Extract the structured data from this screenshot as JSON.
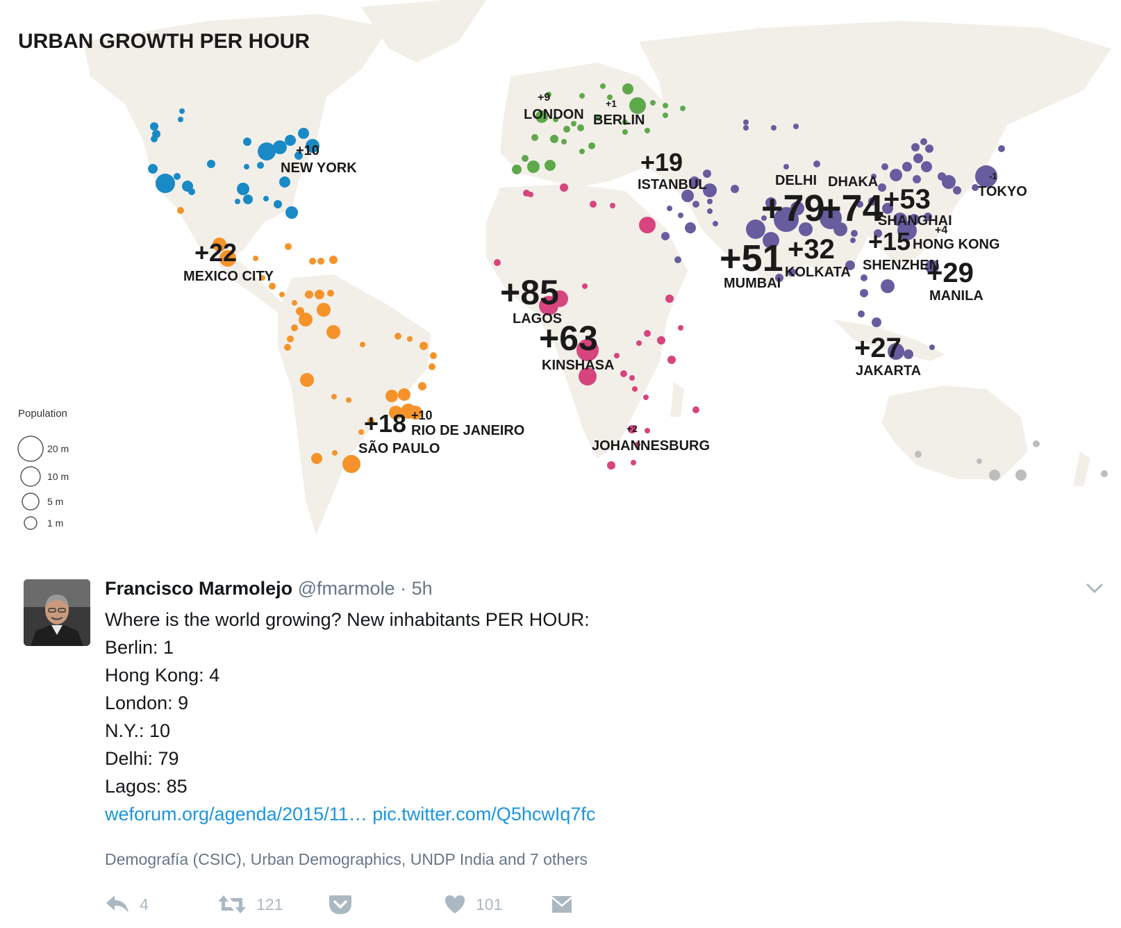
{
  "map": {
    "title": "URBAN GROWTH PER HOUR",
    "legend": {
      "title": "Population",
      "items": [
        "20 m",
        "10 m",
        "5 m",
        "1 m"
      ]
    },
    "region_colors": {
      "north_america": "#1a8ac6",
      "latin_america": "#f5932a",
      "europe": "#5fa84b",
      "africa": "#d6457d",
      "asia": "#675c9e",
      "oceania": "#bdbdbd"
    },
    "cities": [
      {
        "name": "NEW YORK",
        "value": "+10",
        "region": "north_america"
      },
      {
        "name": "MEXICO CITY",
        "value": "+22",
        "region": "latin_america"
      },
      {
        "name": "RIO DE JANEIRO",
        "value": "+10",
        "region": "latin_america"
      },
      {
        "name": "SÃO PAULO",
        "value": "+18",
        "region": "latin_america"
      },
      {
        "name": "LONDON",
        "value": "+9",
        "region": "europe"
      },
      {
        "name": "BERLIN",
        "value": "+1",
        "region": "europe"
      },
      {
        "name": "ISTANBUL",
        "value": "+19",
        "region": "europe"
      },
      {
        "name": "LAGOS",
        "value": "+85",
        "region": "africa"
      },
      {
        "name": "KINSHASA",
        "value": "+63",
        "region": "africa"
      },
      {
        "name": "JOHANNESBURG",
        "value": "+2",
        "region": "africa"
      },
      {
        "name": "DELHI",
        "value": "+79",
        "region": "asia"
      },
      {
        "name": "DHAKA",
        "value": "+74",
        "region": "asia"
      },
      {
        "name": "MUMBAI",
        "value": "+51",
        "region": "asia"
      },
      {
        "name": "KOLKATA",
        "value": "+32",
        "region": "asia"
      },
      {
        "name": "SHANGHAI",
        "value": "+53",
        "region": "asia"
      },
      {
        "name": "TOKYO",
        "value": "-1",
        "region": "asia"
      },
      {
        "name": "HONG KONG",
        "value": "+4",
        "region": "asia"
      },
      {
        "name": "SHENZHEN",
        "value": "+15",
        "region": "asia"
      },
      {
        "name": "MANILA",
        "value": "+29",
        "region": "asia"
      },
      {
        "name": "JAKARTA",
        "value": "+27",
        "region": "asia"
      }
    ]
  },
  "tweet": {
    "author_name": "Francisco Marmolejo",
    "handle": "@fmarmole",
    "separator": "·",
    "time": "5h",
    "lines": [
      "Where is the world growing? New inhabitants PER HOUR:",
      "Berlin: 1",
      "Hong Kong: 4",
      "London: 9",
      "N.Y.: 10",
      "Delhi: 79",
      "Lagos: 85"
    ],
    "link1": "weforum.org/agenda/2015/11…",
    "link2": "pic.twitter.com/Q5hcwIq7fc",
    "context": "Demografía (CSIC), Urban Demographics, UNDP India and 7 others",
    "reply_count": "4",
    "retweet_count": "121",
    "like_count": "101"
  }
}
